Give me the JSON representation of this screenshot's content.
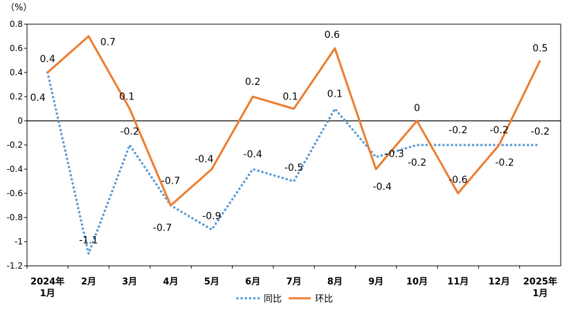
{
  "chart_data": {
    "type": "line",
    "unit_label": "（%）",
    "categories": [
      [
        "2024年",
        "1月"
      ],
      [
        "2月"
      ],
      [
        "3月"
      ],
      [
        "4月"
      ],
      [
        "5月"
      ],
      [
        "6月"
      ],
      [
        "7月"
      ],
      [
        "8月"
      ],
      [
        "9月"
      ],
      [
        "10月"
      ],
      [
        "11月"
      ],
      [
        "12月"
      ],
      [
        "2025年",
        "1月"
      ]
    ],
    "ylim": [
      -1.2,
      0.8
    ],
    "yticks": [
      0.8,
      0.6,
      0.4,
      0.2,
      0,
      -0.2,
      -0.4,
      -0.6,
      -0.8,
      -1,
      -1.2
    ],
    "ytick_labels": [
      "0.8",
      "0.6",
      "0.4",
      "0.2",
      "0",
      "-0.2",
      "-0.4",
      "-0.6",
      "-0.8",
      "-1",
      "-1.2"
    ],
    "grid": false,
    "legend_position": "bottom",
    "series": [
      {
        "name": "同比",
        "style": "dotted",
        "color": "#5B9BD5",
        "values": [
          0.4,
          -1.1,
          -0.2,
          -0.7,
          -0.9,
          -0.4,
          -0.5,
          0.1,
          -0.3,
          -0.2,
          -0.2,
          -0.2,
          -0.2
        ],
        "labels": [
          "0.4",
          "-1.1",
          "-0.2",
          "-0.7",
          "-0.9",
          "-0.4",
          "-0.5",
          "0.1",
          "-0.3",
          "-0.2",
          "-0.2",
          "-0.2",
          "-0.2"
        ]
      },
      {
        "name": "环比",
        "style": "solid",
        "color": "#ED7D31",
        "values": [
          0.4,
          0.7,
          0.1,
          -0.7,
          -0.4,
          0.2,
          0.1,
          0.6,
          -0.4,
          0,
          -0.6,
          -0.2,
          0.5
        ],
        "labels": [
          "0.4",
          "0.7",
          "0.1",
          "-0.7",
          "-0.4",
          "0.2",
          "0.1",
          "0.6",
          "-0.4",
          "0",
          "-0.6",
          "-0.2",
          "0.5"
        ]
      }
    ]
  }
}
